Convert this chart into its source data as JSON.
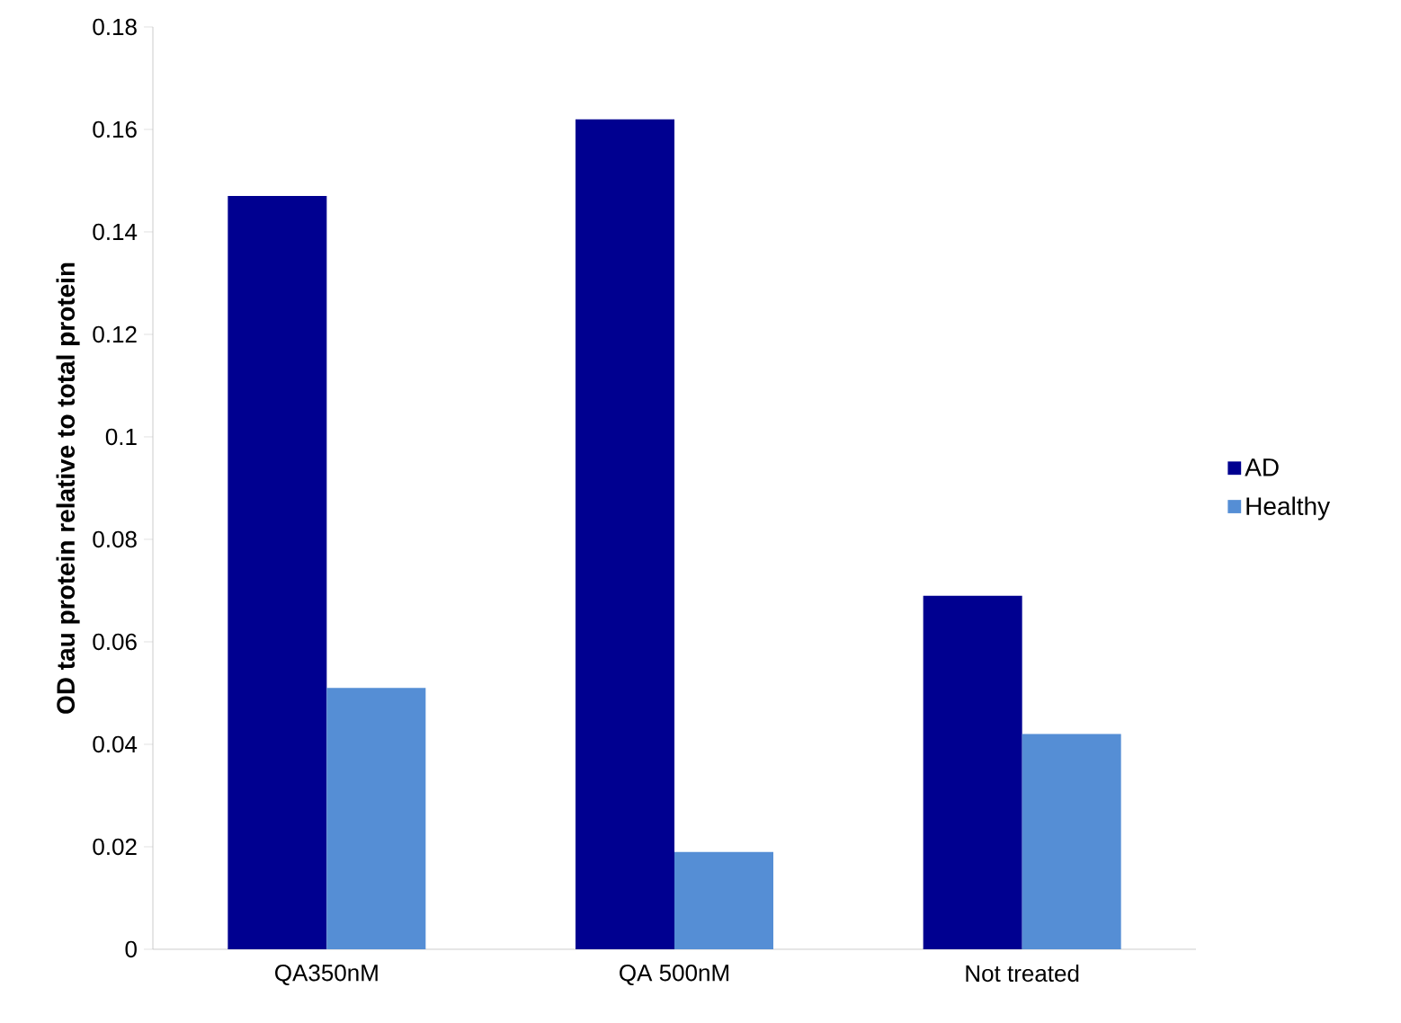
{
  "chart_data": {
    "type": "bar",
    "ylabel": "OD tau protein relative to total protein",
    "categories": [
      "QA350nM",
      "QA 500nM",
      "Not treated"
    ],
    "series": [
      {
        "name": "AD",
        "color": "#000090",
        "values": [
          0.147,
          0.162,
          0.069
        ]
      },
      {
        "name": "Healthy",
        "color": "#558ed5",
        "values": [
          0.051,
          0.019,
          0.042
        ]
      }
    ],
    "ylim": [
      0,
      0.18
    ],
    "yticks": [
      0,
      0.02,
      0.04,
      0.06,
      0.08,
      0.1,
      0.12,
      0.14,
      0.16,
      0.18
    ],
    "grid": false,
    "legend": "right"
  }
}
